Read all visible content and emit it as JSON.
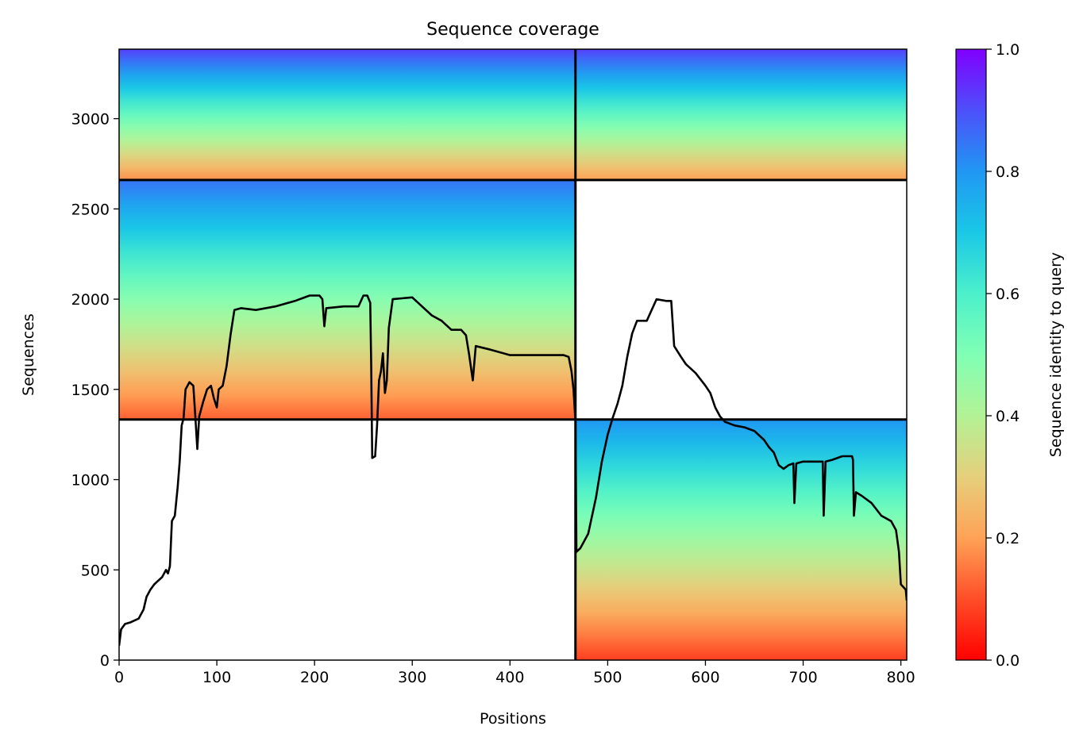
{
  "chart_data": {
    "type": "heatmap",
    "title": "Sequence coverage",
    "xlabel": "Positions",
    "ylabel": "Sequences",
    "xlim": [
      0,
      806
    ],
    "ylim": [
      0,
      3385
    ],
    "x_ticks": [
      0,
      100,
      200,
      300,
      400,
      500,
      600,
      700,
      800
    ],
    "y_ticks": [
      0,
      500,
      1000,
      1500,
      2000,
      2500,
      3000
    ],
    "colorbar": {
      "label": "Sequence identity to query",
      "range": [
        0,
        1
      ],
      "ticks": [
        "0.0",
        "0.2",
        "0.4",
        "0.6",
        "0.8",
        "1.0"
      ],
      "colormap": "rainbow",
      "stops": [
        "#ff0000",
        "#ff4e28",
        "#ffa256",
        "#e6cf7c",
        "#b3f296",
        "#80ffb4",
        "#4cf0cb",
        "#1ac8e6",
        "#2097f3",
        "#4d50fa",
        "#8000ff"
      ]
    },
    "chain_boundary_x": 467,
    "segment_boundaries_y": [
      1333,
      2660
    ],
    "blocks": [
      {
        "x0": 0,
        "x1": 467,
        "y0": 2660,
        "y1": 3385,
        "top_identity": 0.92,
        "bottom_identity": 0.18
      },
      {
        "x0": 467,
        "x1": 806,
        "y0": 2660,
        "y1": 3385,
        "top_identity": 0.92,
        "bottom_identity": 0.2
      },
      {
        "x0": 0,
        "x1": 467,
        "y0": 1333,
        "y1": 2660,
        "top_identity": 0.85,
        "bottom_identity": 0.12
      },
      {
        "x0": 467,
        "x1": 806,
        "y0": 0,
        "y1": 1333,
        "top_identity": 0.8,
        "bottom_identity": 0.08
      }
    ],
    "coverage_line": {
      "color": "#000000",
      "points": [
        [
          0,
          80
        ],
        [
          2,
          170
        ],
        [
          6,
          200
        ],
        [
          12,
          210
        ],
        [
          20,
          230
        ],
        [
          25,
          280
        ],
        [
          28,
          350
        ],
        [
          32,
          390
        ],
        [
          36,
          420
        ],
        [
          40,
          440
        ],
        [
          44,
          460
        ],
        [
          48,
          500
        ],
        [
          50,
          480
        ],
        [
          52,
          520
        ],
        [
          54,
          770
        ],
        [
          57,
          800
        ],
        [
          60,
          960
        ],
        [
          62,
          1100
        ],
        [
          64,
          1300
        ],
        [
          66,
          1340
        ],
        [
          68,
          1500
        ],
        [
          72,
          1540
        ],
        [
          76,
          1520
        ],
        [
          78,
          1350
        ],
        [
          80,
          1170
        ],
        [
          82,
          1350
        ],
        [
          86,
          1430
        ],
        [
          90,
          1500
        ],
        [
          94,
          1520
        ],
        [
          97,
          1450
        ],
        [
          100,
          1400
        ],
        [
          102,
          1500
        ],
        [
          106,
          1520
        ],
        [
          110,
          1630
        ],
        [
          114,
          1800
        ],
        [
          118,
          1940
        ],
        [
          125,
          1950
        ],
        [
          140,
          1940
        ],
        [
          160,
          1960
        ],
        [
          180,
          1990
        ],
        [
          195,
          2020
        ],
        [
          205,
          2020
        ],
        [
          208,
          2000
        ],
        [
          210,
          1850
        ],
        [
          212,
          1950
        ],
        [
          230,
          1960
        ],
        [
          245,
          1960
        ],
        [
          250,
          2020
        ],
        [
          254,
          2020
        ],
        [
          257,
          1980
        ],
        [
          258,
          1640
        ],
        [
          259,
          1120
        ],
        [
          262,
          1130
        ],
        [
          264,
          1300
        ],
        [
          266,
          1550
        ],
        [
          268,
          1600
        ],
        [
          270,
          1700
        ],
        [
          272,
          1480
        ],
        [
          274,
          1550
        ],
        [
          276,
          1840
        ],
        [
          280,
          2000
        ],
        [
          300,
          2010
        ],
        [
          310,
          1960
        ],
        [
          320,
          1910
        ],
        [
          330,
          1880
        ],
        [
          340,
          1830
        ],
        [
          350,
          1830
        ],
        [
          355,
          1800
        ],
        [
          358,
          1700
        ],
        [
          362,
          1550
        ],
        [
          365,
          1740
        ],
        [
          380,
          1720
        ],
        [
          400,
          1690
        ],
        [
          420,
          1690
        ],
        [
          440,
          1690
        ],
        [
          455,
          1690
        ],
        [
          460,
          1680
        ],
        [
          463,
          1600
        ],
        [
          465,
          1500
        ],
        [
          467,
          1320
        ],
        [
          468,
          600
        ],
        [
          472,
          620
        ],
        [
          480,
          700
        ],
        [
          488,
          900
        ],
        [
          494,
          1100
        ],
        [
          500,
          1250
        ],
        [
          505,
          1340
        ],
        [
          510,
          1420
        ],
        [
          515,
          1520
        ],
        [
          520,
          1680
        ],
        [
          525,
          1810
        ],
        [
          530,
          1880
        ],
        [
          540,
          1880
        ],
        [
          550,
          2000
        ],
        [
          560,
          1990
        ],
        [
          565,
          1990
        ],
        [
          568,
          1740
        ],
        [
          575,
          1680
        ],
        [
          580,
          1640
        ],
        [
          590,
          1590
        ],
        [
          600,
          1520
        ],
        [
          605,
          1480
        ],
        [
          610,
          1400
        ],
        [
          615,
          1350
        ],
        [
          620,
          1320
        ],
        [
          630,
          1300
        ],
        [
          640,
          1290
        ],
        [
          650,
          1270
        ],
        [
          660,
          1220
        ],
        [
          665,
          1180
        ],
        [
          670,
          1150
        ],
        [
          675,
          1080
        ],
        [
          680,
          1060
        ],
        [
          685,
          1080
        ],
        [
          690,
          1090
        ],
        [
          691,
          870
        ],
        [
          693,
          1090
        ],
        [
          700,
          1100
        ],
        [
          720,
          1100
        ],
        [
          721,
          800
        ],
        [
          723,
          1100
        ],
        [
          730,
          1110
        ],
        [
          740,
          1130
        ],
        [
          750,
          1130
        ],
        [
          751,
          1110
        ],
        [
          752,
          800
        ],
        [
          754,
          930
        ],
        [
          760,
          910
        ],
        [
          770,
          870
        ],
        [
          780,
          800
        ],
        [
          790,
          770
        ],
        [
          795,
          720
        ],
        [
          798,
          600
        ],
        [
          800,
          420
        ],
        [
          805,
          390
        ],
        [
          806,
          330
        ]
      ]
    }
  }
}
